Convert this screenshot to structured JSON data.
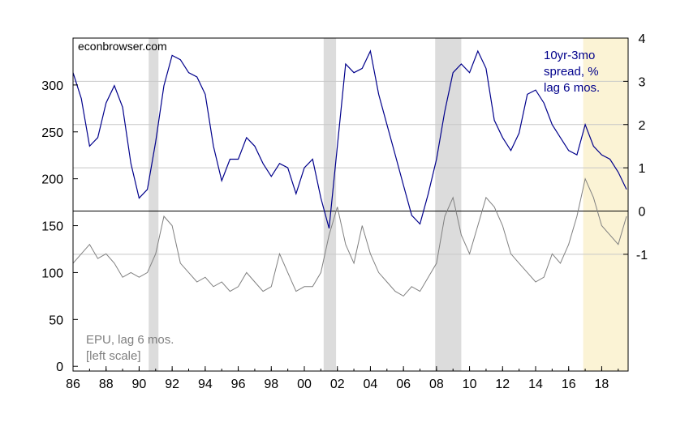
{
  "chart_data": {
    "type": "line",
    "source_label": "econbrowser.com",
    "x_range": [
      1986.0,
      2019.6
    ],
    "x_ticks": [
      "86",
      "88",
      "90",
      "92",
      "94",
      "96",
      "98",
      "00",
      "02",
      "04",
      "06",
      "08",
      "10",
      "12",
      "14",
      "16",
      "18"
    ],
    "left_axis": {
      "range": [
        -5,
        350
      ],
      "ticks": [
        "0",
        "50",
        "100",
        "150",
        "200",
        "250",
        "300"
      ]
    },
    "right_axis": {
      "range": [
        -3.7,
        4.0
      ],
      "ticks": [
        "-1",
        "0",
        "1",
        "2",
        "3",
        "4"
      ]
    },
    "zero_line_right": 0,
    "recessions": [
      [
        1990.58,
        1991.17
      ],
      [
        2001.17,
        2001.92
      ],
      [
        2007.92,
        2009.5
      ]
    ],
    "highlight": {
      "range": [
        2016.88,
        2019.6
      ],
      "color": "#fbf3d5"
    },
    "series": [
      {
        "name_lines": [
          "10yr-3mo",
          "spread, %",
          "lag 6 mos."
        ],
        "axis": "right",
        "color": "#00008b",
        "x": [
          1986.0,
          1986.5,
          1987.0,
          1987.5,
          1988.0,
          1988.5,
          1989.0,
          1989.5,
          1990.0,
          1990.5,
          1991.0,
          1991.5,
          1992.0,
          1992.5,
          1993.0,
          1993.5,
          1994.0,
          1994.5,
          1995.0,
          1995.5,
          1996.0,
          1996.5,
          1997.0,
          1997.5,
          1998.0,
          1998.5,
          1999.0,
          1999.5,
          2000.0,
          2000.5,
          2001.0,
          2001.5,
          2002.0,
          2002.5,
          2003.0,
          2003.5,
          2004.0,
          2004.5,
          2005.0,
          2005.5,
          2006.0,
          2006.5,
          2007.0,
          2007.5,
          2008.0,
          2008.5,
          2009.0,
          2009.5,
          2010.0,
          2010.5,
          2011.0,
          2011.5,
          2012.0,
          2012.5,
          2013.0,
          2013.5,
          2014.0,
          2014.5,
          2015.0,
          2015.5,
          2016.0,
          2016.5,
          2017.0,
          2017.5,
          2018.0,
          2018.5,
          2019.0,
          2019.5
        ],
        "values": [
          3.2,
          2.6,
          1.5,
          1.7,
          2.5,
          2.9,
          2.4,
          1.1,
          0.3,
          0.5,
          1.6,
          2.9,
          3.6,
          3.5,
          3.2,
          3.1,
          2.7,
          1.5,
          0.7,
          1.2,
          1.2,
          1.7,
          1.5,
          1.1,
          0.8,
          1.1,
          1.0,
          0.4,
          1.0,
          1.2,
          0.3,
          -0.4,
          1.5,
          3.4,
          3.2,
          3.3,
          3.7,
          2.7,
          2.0,
          1.3,
          0.6,
          -0.1,
          -0.3,
          0.4,
          1.2,
          2.3,
          3.2,
          3.4,
          3.2,
          3.7,
          3.3,
          2.1,
          1.7,
          1.4,
          1.8,
          2.7,
          2.8,
          2.5,
          2.0,
          1.7,
          1.4,
          1.3,
          2.0,
          1.5,
          1.3,
          1.2,
          0.9,
          0.5
        ]
      },
      {
        "name_lines": [
          "EPU, lag 6 mos.",
          "[left scale]"
        ],
        "axis": "left",
        "color": "#808080",
        "x": [
          1986.0,
          1986.5,
          1987.0,
          1987.5,
          1988.0,
          1988.5,
          1989.0,
          1989.5,
          1990.0,
          1990.5,
          1991.0,
          1991.5,
          1992.0,
          1992.5,
          1993.0,
          1993.5,
          1994.0,
          1994.5,
          1995.0,
          1995.5,
          1996.0,
          1996.5,
          1997.0,
          1997.5,
          1998.0,
          1998.5,
          1999.0,
          1999.5,
          2000.0,
          2000.5,
          2001.0,
          2001.5,
          2002.0,
          2002.5,
          2003.0,
          2003.5,
          2004.0,
          2004.5,
          2005.0,
          2005.5,
          2006.0,
          2006.5,
          2007.0,
          2007.5,
          2008.0,
          2008.5,
          2009.0,
          2009.5,
          2010.0,
          2010.5,
          2011.0,
          2011.5,
          2012.0,
          2012.5,
          2013.0,
          2013.5,
          2014.0,
          2014.5,
          2015.0,
          2015.5,
          2016.0,
          2016.5,
          2017.0,
          2017.5,
          2018.0,
          2018.5,
          2019.0,
          2019.5
        ],
        "values": [
          110,
          120,
          130,
          115,
          120,
          110,
          95,
          100,
          95,
          100,
          120,
          160,
          150,
          110,
          100,
          90,
          95,
          85,
          90,
          80,
          85,
          100,
          90,
          80,
          85,
          120,
          100,
          80,
          85,
          85,
          100,
          140,
          170,
          130,
          110,
          150,
          120,
          100,
          90,
          80,
          75,
          85,
          80,
          95,
          110,
          160,
          180,
          140,
          120,
          150,
          180,
          170,
          150,
          120,
          110,
          100,
          90,
          95,
          120,
          110,
          130,
          160,
          200,
          180,
          150,
          140,
          130,
          160
        ]
      }
    ]
  }
}
